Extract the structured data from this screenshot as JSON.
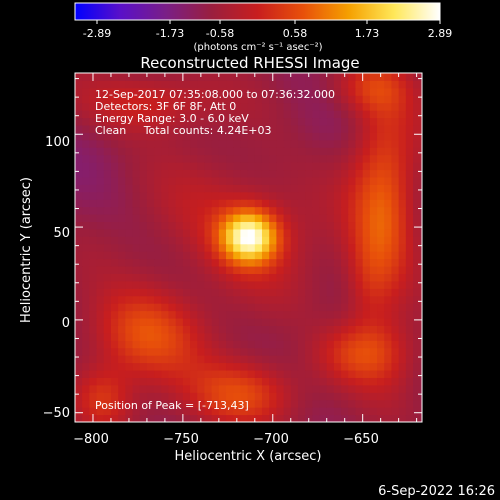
{
  "colorbar": {
    "tick_labels": [
      "-2.89",
      "-1.73",
      "-0.58",
      "0.58",
      "1.73",
      "2.89"
    ],
    "unit_label": "(photons cm⁻² s⁻¹ asec⁻²)",
    "range": [
      -2.89,
      2.89
    ],
    "colormap": [
      "#0000ff",
      "#5a10c8",
      "#7a1e86",
      "#9a1e3e",
      "#c81e1e",
      "#e8500a",
      "#f5a000",
      "#ffe85a",
      "#ffffff"
    ]
  },
  "chart_data": {
    "type": "heatmap",
    "title": "Reconstructed RHESSI Image",
    "xlabel": "Heliocentric X (arcsec)",
    "ylabel": "Heliocentric Y (arcsec)",
    "xlim": [
      -810,
      -617
    ],
    "ylim": [
      -55,
      133
    ],
    "x_ticks": [
      -800,
      -750,
      -700,
      -650
    ],
    "y_ticks": [
      -50,
      0,
      50,
      100
    ],
    "x_tick_labels": [
      "−800",
      "−750",
      "−700",
      "−650"
    ],
    "y_tick_labels": [
      "−50",
      "0",
      "50",
      "100"
    ],
    "annotations": [
      "12-Sep-2017 07:35:08.000 to 07:36:32.000",
      "Detectors: 3F 6F 8F, Att 0",
      "Energy Range: 3.0 - 6.0 keV",
      "Clean     Total counts: 4.24E+03"
    ],
    "peak_label": "Position of Peak = [-713,43]",
    "peak": {
      "x": -713,
      "y": 43
    },
    "sources": [
      {
        "x": -713,
        "y": 45,
        "sx": 11,
        "sy": 10,
        "amp": 2.95
      },
      {
        "x": -718,
        "y": 50,
        "sx": 32,
        "sy": 26,
        "amp": 0.95
      },
      {
        "x": -638,
        "y": 62,
        "sx": 13,
        "sy": 50,
        "amp": 1.55
      },
      {
        "x": -648,
        "y": 20,
        "sx": 9,
        "sy": 18,
        "amp": 0.5
      },
      {
        "x": -772,
        "y": -8,
        "sx": 22,
        "sy": 18,
        "amp": 1.6
      },
      {
        "x": -795,
        "y": -42,
        "sx": 12,
        "sy": 12,
        "amp": 1.1
      },
      {
        "x": -715,
        "y": -40,
        "sx": 22,
        "sy": 13,
        "amp": 1.5
      },
      {
        "x": -652,
        "y": -18,
        "sx": 18,
        "sy": 12,
        "amp": 1.2
      },
      {
        "x": -770,
        "y": 118,
        "sx": 25,
        "sy": 12,
        "amp": 1.1
      },
      {
        "x": -648,
        "y": 125,
        "sx": 16,
        "sy": 10,
        "amp": 0.9
      }
    ],
    "baseline": -0.9
  },
  "footer": {
    "date": "6-Sep-2022 16:26"
  }
}
